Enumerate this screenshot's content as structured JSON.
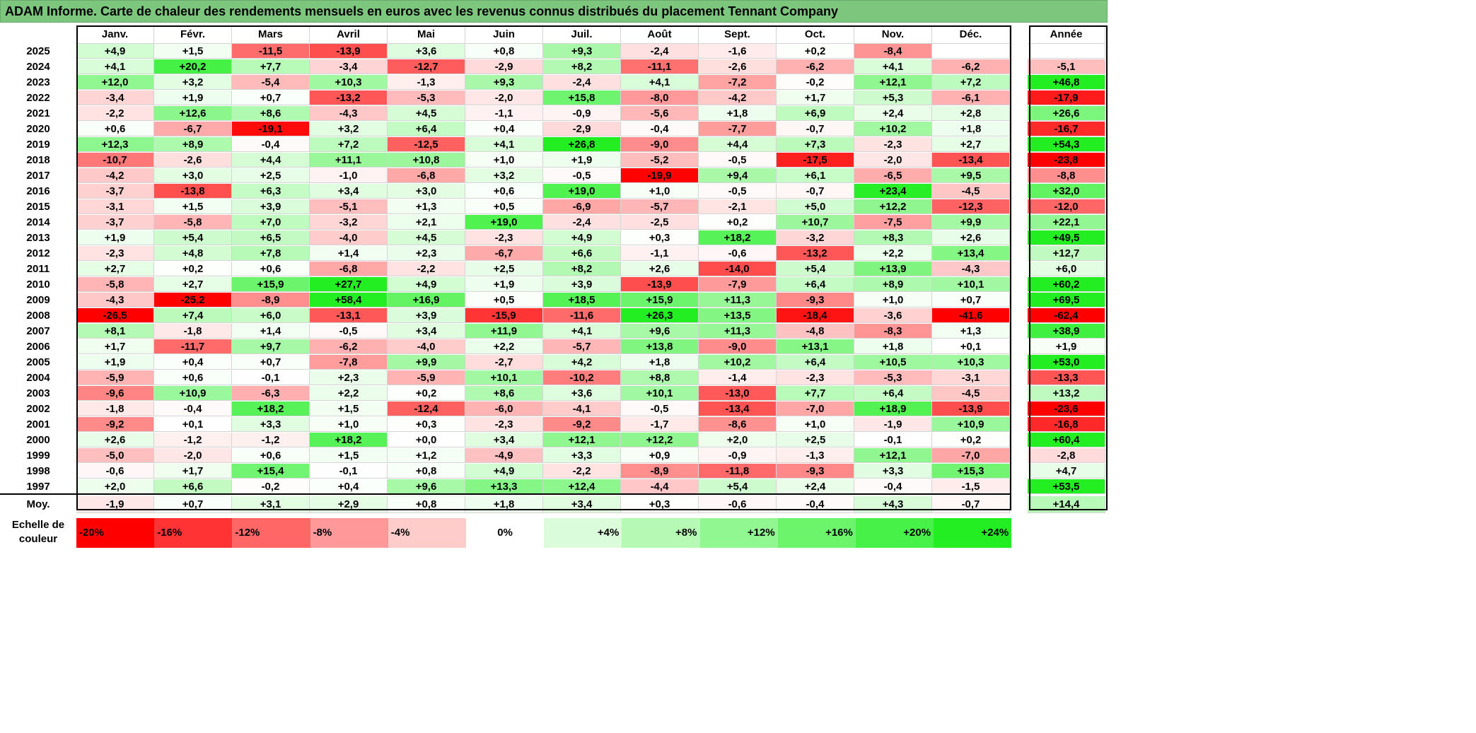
{
  "title": "ADAM Informe. Carte de chaleur des rendements mensuels en euros avec les revenus connus distribués du placement Tennant Company",
  "chart_data": {
    "type": "heatmap",
    "title": "ADAM Informe. Carte de chaleur des rendements mensuels en euros avec les revenus connus distribués du placement Tennant Company",
    "columns": [
      "Janv.",
      "Févr.",
      "Mars",
      "Avril",
      "Mai",
      "Juin",
      "Juil.",
      "Août",
      "Sept.",
      "Oct.",
      "Nov.",
      "Déc."
    ],
    "year_header": "Année",
    "rows": [
      {
        "label": "2025",
        "values": [
          "+4,9",
          "+1,5",
          "-11,5",
          "-13,9",
          "+3,6",
          "+0,8",
          "+9,3",
          "-2,4",
          "-1,6",
          "+0,2",
          "-8,4",
          ""
        ],
        "year": ""
      },
      {
        "label": "2024",
        "values": [
          "+4,1",
          "+20,2",
          "+7,7",
          "-3,4",
          "-12,7",
          "-2,9",
          "+8,2",
          "-11,1",
          "-2,6",
          "-6,2",
          "+4,1",
          "-6,2"
        ],
        "year": "-5,1"
      },
      {
        "label": "2023",
        "values": [
          "+12,0",
          "+3,2",
          "-5,4",
          "+10,3",
          "-1,3",
          "+9,3",
          "-2,4",
          "+4,1",
          "-7,2",
          "-0,2",
          "+12,1",
          "+7,2"
        ],
        "year": "+46,8"
      },
      {
        "label": "2022",
        "values": [
          "-3,4",
          "+1,9",
          "+0,7",
          "-13,2",
          "-5,3",
          "-2,0",
          "+15,8",
          "-8,0",
          "-4,2",
          "+1,7",
          "+5,3",
          "-6,1"
        ],
        "year": "-17,9"
      },
      {
        "label": "2021",
        "values": [
          "-2,2",
          "+12,6",
          "+8,6",
          "-4,3",
          "+4,5",
          "-1,1",
          "-0,9",
          "-5,6",
          "+1,8",
          "+6,9",
          "+2,4",
          "+2,8"
        ],
        "year": "+26,6"
      },
      {
        "label": "2020",
        "values": [
          "+0,6",
          "-6,7",
          "-19,1",
          "+3,2",
          "+6,4",
          "+0,4",
          "-2,9",
          "-0,4",
          "-7,7",
          "-0,7",
          "+10,2",
          "+1,8"
        ],
        "year": "-16,7"
      },
      {
        "label": "2019",
        "values": [
          "+12,3",
          "+8,9",
          "-0,4",
          "+7,2",
          "-12,5",
          "+4,1",
          "+26,8",
          "-9,0",
          "+4,4",
          "+7,3",
          "-2,3",
          "+2,7"
        ],
        "year": "+54,3"
      },
      {
        "label": "2018",
        "values": [
          "-10,7",
          "-2,6",
          "+4,4",
          "+11,1",
          "+10,8",
          "+1,0",
          "+1,9",
          "-5,2",
          "-0,5",
          "-17,5",
          "-2,0",
          "-13,4"
        ],
        "year": "-23,8"
      },
      {
        "label": "2017",
        "values": [
          "-4,2",
          "+3,0",
          "+2,5",
          "-1,0",
          "-6,8",
          "+3,2",
          "-0,5",
          "-19,9",
          "+9,4",
          "+6,1",
          "-6,5",
          "+9,5"
        ],
        "year": "-8,8"
      },
      {
        "label": "2016",
        "values": [
          "-3,7",
          "-13,8",
          "+6,3",
          "+3,4",
          "+3,0",
          "+0,6",
          "+19,0",
          "+1,0",
          "-0,5",
          "-0,7",
          "+23,4",
          "-4,5"
        ],
        "year": "+32,0"
      },
      {
        "label": "2015",
        "values": [
          "-3,1",
          "+1,5",
          "+3,9",
          "-5,1",
          "+1,3",
          "+0,5",
          "-6,9",
          "-5,7",
          "-2,1",
          "+5,0",
          "+12,2",
          "-12,3"
        ],
        "year": "-12,0"
      },
      {
        "label": "2014",
        "values": [
          "-3,7",
          "-5,8",
          "+7,0",
          "-3,2",
          "+2,1",
          "+19,0",
          "-2,4",
          "-2,5",
          "+0,2",
          "+10,7",
          "-7,5",
          "+9,9"
        ],
        "year": "+22,1"
      },
      {
        "label": "2013",
        "values": [
          "+1,9",
          "+5,4",
          "+6,5",
          "-4,0",
          "+4,5",
          "-2,3",
          "+4,9",
          "+0,3",
          "+18,2",
          "-3,2",
          "+8,3",
          "+2,6"
        ],
        "year": "+49,5"
      },
      {
        "label": "2012",
        "values": [
          "-2,3",
          "+4,8",
          "+7,8",
          "+1,4",
          "+2,3",
          "-6,7",
          "+6,6",
          "-1,1",
          "-0,6",
          "-13,2",
          "+2,2",
          "+13,4"
        ],
        "year": "+12,7"
      },
      {
        "label": "2011",
        "values": [
          "+2,7",
          "+0,2",
          "+0,6",
          "-6,8",
          "-2,2",
          "+2,5",
          "+8,2",
          "+2,6",
          "-14,0",
          "+5,4",
          "+13,9",
          "-4,3"
        ],
        "year": "+6,0"
      },
      {
        "label": "2010",
        "values": [
          "-5,8",
          "+2,7",
          "+15,9",
          "+27,7",
          "+4,9",
          "+1,9",
          "+3,9",
          "-13,9",
          "-7,9",
          "+6,4",
          "+8,9",
          "+10,1"
        ],
        "year": "+60,2"
      },
      {
        "label": "2009",
        "values": [
          "-4,3",
          "-25,2",
          "-8,9",
          "+58,4",
          "+16,9",
          "+0,5",
          "+18,5",
          "+15,9",
          "+11,3",
          "-9,3",
          "+1,0",
          "+0,7"
        ],
        "year": "+69,5"
      },
      {
        "label": "2008",
        "values": [
          "-26,5",
          "+7,4",
          "+6,0",
          "-13,1",
          "+3,9",
          "-15,9",
          "-11,6",
          "+26,3",
          "+13,5",
          "-18,4",
          "-3,6",
          "-41,6"
        ],
        "year": "-62,4"
      },
      {
        "label": "2007",
        "values": [
          "+8,1",
          "-1,8",
          "+1,4",
          "-0,5",
          "+3,4",
          "+11,9",
          "+4,1",
          "+9,6",
          "+11,3",
          "-4,8",
          "-8,3",
          "+1,3"
        ],
        "year": "+38,9"
      },
      {
        "label": "2006",
        "values": [
          "+1,7",
          "-11,7",
          "+9,7",
          "-6,2",
          "-4,0",
          "+2,2",
          "-5,7",
          "+13,8",
          "-9,0",
          "+13,1",
          "+1,8",
          "+0,1"
        ],
        "year": "+1,9"
      },
      {
        "label": "2005",
        "values": [
          "+1,9",
          "+0,4",
          "+0,7",
          "-7,8",
          "+9,9",
          "-2,7",
          "+4,2",
          "+1,8",
          "+10,2",
          "+6,4",
          "+10,5",
          "+10,3"
        ],
        "year": "+53,0"
      },
      {
        "label": "2004",
        "values": [
          "-5,9",
          "+0,6",
          "-0,1",
          "+2,3",
          "-5,9",
          "+10,1",
          "-10,2",
          "+8,8",
          "-1,4",
          "-2,3",
          "-5,3",
          "-3,1"
        ],
        "year": "-13,3"
      },
      {
        "label": "2003",
        "values": [
          "-9,6",
          "+10,9",
          "-6,3",
          "+2,2",
          "+0,2",
          "+8,6",
          "+3,6",
          "+10,1",
          "-13,0",
          "+7,7",
          "+6,4",
          "-4,5"
        ],
        "year": "+13,2"
      },
      {
        "label": "2002",
        "values": [
          "-1,8",
          "-0,4",
          "+18,2",
          "+1,5",
          "-12,4",
          "-6,0",
          "-4,1",
          "-0,5",
          "-13,4",
          "-7,0",
          "+18,9",
          "-13,9"
        ],
        "year": "-23,6"
      },
      {
        "label": "2001",
        "values": [
          "-9,2",
          "+0,1",
          "+3,3",
          "+1,0",
          "+0,3",
          "-2,3",
          "-9,2",
          "-1,7",
          "-8,6",
          "+1,0",
          "-1,9",
          "+10,9"
        ],
        "year": "-16,8"
      },
      {
        "label": "2000",
        "values": [
          "+2,6",
          "-1,2",
          "-1,2",
          "+18,2",
          "+0,0",
          "+3,4",
          "+12,1",
          "+12,2",
          "+2,0",
          "+2,5",
          "-0,1",
          "+0,2"
        ],
        "year": "+60,4"
      },
      {
        "label": "1999",
        "values": [
          "-5,0",
          "-2,0",
          "+0,6",
          "+1,5",
          "+1,2",
          "-4,9",
          "+3,3",
          "+0,9",
          "-0,9",
          "-1,3",
          "+12,1",
          "-7,0"
        ],
        "year": "-2,8"
      },
      {
        "label": "1998",
        "values": [
          "-0,6",
          "+1,7",
          "+15,4",
          "-0,1",
          "+0,8",
          "+4,9",
          "-2,2",
          "-8,9",
          "-11,8",
          "-9,3",
          "+3,3",
          "+15,3"
        ],
        "year": "+4,7"
      },
      {
        "label": "1997",
        "values": [
          "+2,0",
          "+6,6",
          "-0,2",
          "+0,4",
          "+9,6",
          "+13,3",
          "+12,4",
          "-4,4",
          "+5,4",
          "+2,4",
          "-0,4",
          "-1,5"
        ],
        "year": "+53,5"
      }
    ],
    "average": {
      "label": "Moy.",
      "values": [
        "-1,9",
        "+0,7",
        "+3,1",
        "+2,9",
        "+0,8",
        "+1,8",
        "+3,4",
        "+0,3",
        "-0,6",
        "-0,4",
        "+4,3",
        "-0,7"
      ],
      "year": "+14,4"
    },
    "legend": {
      "label": "Echelle de couleur",
      "steps": [
        "-20%",
        "-16%",
        "-12%",
        "-8%",
        "-4%",
        "0%",
        "+4%",
        "+8%",
        "+12%",
        "+16%",
        "+20%",
        "+24%"
      ],
      "values": [
        -20,
        -16,
        -12,
        -8,
        -4,
        0,
        4,
        8,
        12,
        16,
        20,
        24
      ]
    },
    "colors": {
      "title_bg": "#7dc67e",
      "negative": "#ff0000",
      "positive": "#22ee22",
      "neutral": "#ffffff"
    }
  }
}
